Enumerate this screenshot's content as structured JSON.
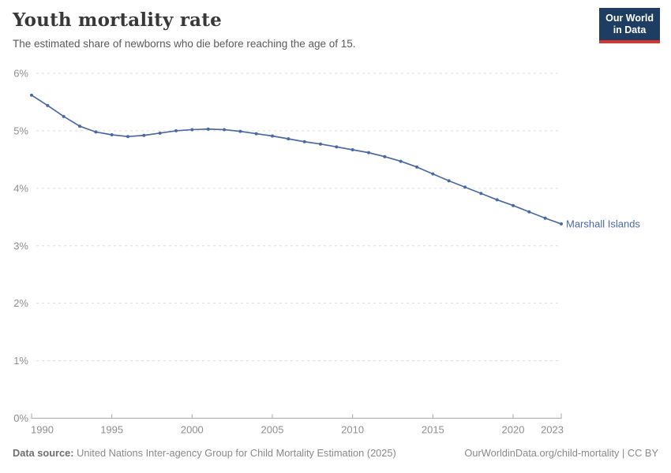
{
  "header": {
    "title": "Youth mortality rate",
    "subtitle": "The estimated share of newborns who die before reaching the age of 15.",
    "logo": {
      "line1": "Our World",
      "line2": "in Data"
    }
  },
  "chart_data": {
    "type": "line",
    "title": "Youth mortality rate",
    "subtitle": "The estimated share of newborns who die before reaching the age of 15.",
    "xlabel": "",
    "ylabel": "",
    "xlim": [
      1990,
      2023
    ],
    "ylim": [
      0,
      6
    ],
    "grid": "horizontal-dashed",
    "legend_position": "end-of-line-label",
    "x_ticks": [
      1990,
      1995,
      2000,
      2005,
      2010,
      2015,
      2020,
      2023
    ],
    "y_tick_values": [
      0,
      1,
      2,
      3,
      4,
      5,
      6
    ],
    "y_tick_labels": [
      "0%",
      "1%",
      "2%",
      "3%",
      "4%",
      "5%",
      "6%"
    ],
    "series": [
      {
        "name": "Marshall Islands",
        "color": "#4a69a5",
        "years": [
          1990,
          1991,
          1992,
          1993,
          1994,
          1995,
          1996,
          1997,
          1998,
          1999,
          2000,
          2001,
          2002,
          2003,
          2004,
          2005,
          2006,
          2007,
          2008,
          2009,
          2010,
          2011,
          2012,
          2013,
          2014,
          2015,
          2016,
          2017,
          2018,
          2019,
          2020,
          2021,
          2022,
          2023
        ],
        "values": [
          5.62,
          5.44,
          5.25,
          5.08,
          4.98,
          4.93,
          4.9,
          4.92,
          4.96,
          5.0,
          5.02,
          5.03,
          5.02,
          4.99,
          4.95,
          4.91,
          4.86,
          4.81,
          4.77,
          4.72,
          4.67,
          4.62,
          4.55,
          4.47,
          4.37,
          4.25,
          4.13,
          4.02,
          3.91,
          3.8,
          3.7,
          3.59,
          3.48,
          3.38
        ]
      }
    ]
  },
  "footer": {
    "source_label": "Data source:",
    "source_text": "United Nations Inter-agency Group for Child Mortality Estimation (2025)",
    "link_text": "OurWorldinData.org/child-mortality | CC BY"
  },
  "colors": {
    "accent_line": "#4a69a5",
    "logo_bg": "#1d3d63",
    "logo_underline": "#d7352e",
    "gridline": "#dddddd",
    "axis": "#a8a8a8",
    "tick_text": "#8f8f8f",
    "title_text": "#383838",
    "subtitle_text": "#5b5b5b",
    "footer_text": "#8a8a8a"
  }
}
